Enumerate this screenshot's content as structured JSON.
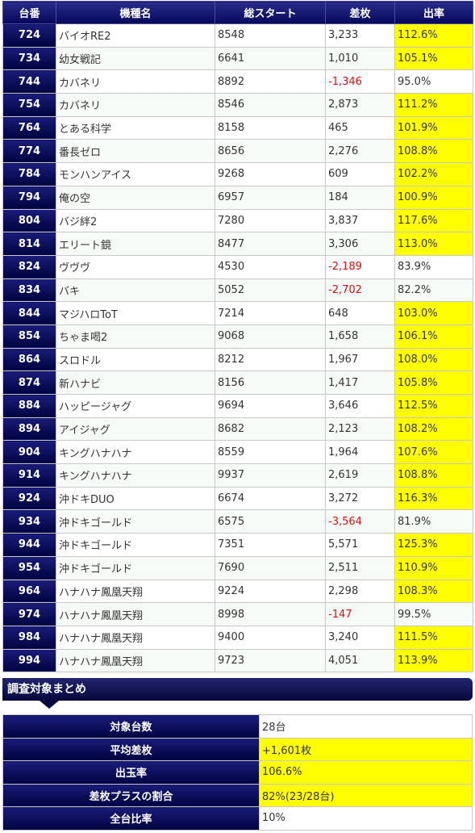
{
  "header": {
    "col_unit": "台番",
    "col_model": "機種名",
    "col_start": "総スタート",
    "col_diff": "差枚",
    "col_rate": "出率"
  },
  "rows": [
    {
      "unit": "724",
      "model": "バイオRE2",
      "start": "8548",
      "diff": "3,233",
      "rate": "112.6%"
    },
    {
      "unit": "734",
      "model": "幼女戦記",
      "start": "6641",
      "diff": "1,010",
      "rate": "105.1%"
    },
    {
      "unit": "744",
      "model": "カバネリ",
      "start": "8892",
      "diff": "-1,346",
      "rate": "95.0%"
    },
    {
      "unit": "754",
      "model": "カバネリ",
      "start": "8546",
      "diff": "2,873",
      "rate": "111.2%"
    },
    {
      "unit": "764",
      "model": "とある科学",
      "start": "8158",
      "diff": "465",
      "rate": "101.9%"
    },
    {
      "unit": "774",
      "model": "番長ゼロ",
      "start": "8656",
      "diff": "2,276",
      "rate": "108.8%"
    },
    {
      "unit": "784",
      "model": "モンハンアイス",
      "start": "9268",
      "diff": "609",
      "rate": "102.2%"
    },
    {
      "unit": "794",
      "model": "俺の空",
      "start": "6957",
      "diff": "184",
      "rate": "100.9%"
    },
    {
      "unit": "804",
      "model": "バジ絆2",
      "start": "7280",
      "diff": "3,837",
      "rate": "117.6%"
    },
    {
      "unit": "814",
      "model": "エリート鏡",
      "start": "8477",
      "diff": "3,306",
      "rate": "113.0%"
    },
    {
      "unit": "824",
      "model": "ヴヴヴ",
      "start": "4530",
      "diff": "-2,189",
      "rate": "83.9%"
    },
    {
      "unit": "834",
      "model": "バキ",
      "start": "5052",
      "diff": "-2,702",
      "rate": "82.2%"
    },
    {
      "unit": "844",
      "model": "マジハロToT",
      "start": "7214",
      "diff": "648",
      "rate": "103.0%"
    },
    {
      "unit": "854",
      "model": "ちゃま喝2",
      "start": "9068",
      "diff": "1,658",
      "rate": "106.1%"
    },
    {
      "unit": "864",
      "model": "スロドル",
      "start": "8212",
      "diff": "1,967",
      "rate": "108.0%"
    },
    {
      "unit": "874",
      "model": "新ハナビ",
      "start": "8156",
      "diff": "1,417",
      "rate": "105.8%"
    },
    {
      "unit": "884",
      "model": "ハッピージャグ",
      "start": "9694",
      "diff": "3,646",
      "rate": "112.5%"
    },
    {
      "unit": "894",
      "model": "アイジャグ",
      "start": "8682",
      "diff": "2,123",
      "rate": "108.2%"
    },
    {
      "unit": "904",
      "model": "キングハナハナ",
      "start": "8559",
      "diff": "1,964",
      "rate": "107.6%"
    },
    {
      "unit": "914",
      "model": "キングハナハナ",
      "start": "9937",
      "diff": "2,619",
      "rate": "108.8%"
    },
    {
      "unit": "924",
      "model": "沖ドキDUO",
      "start": "6674",
      "diff": "3,272",
      "rate": "116.3%"
    },
    {
      "unit": "934",
      "model": "沖ドキゴールド",
      "start": "6575",
      "diff": "-3,564",
      "rate": "81.9%"
    },
    {
      "unit": "944",
      "model": "沖ドキゴールド",
      "start": "7351",
      "diff": "5,571",
      "rate": "125.3%"
    },
    {
      "unit": "954",
      "model": "沖ドキゴールド",
      "start": "7690",
      "diff": "2,511",
      "rate": "110.9%"
    },
    {
      "unit": "964",
      "model": "ハナハナ鳳凰天翔",
      "start": "9224",
      "diff": "2,298",
      "rate": "108.3%"
    },
    {
      "unit": "974",
      "model": "ハナハナ鳳凰天翔",
      "start": "8998",
      "diff": "-147",
      "rate": "99.5%"
    },
    {
      "unit": "984",
      "model": "ハナハナ鳳凰天翔",
      "start": "9400",
      "diff": "3,240",
      "rate": "111.5%"
    },
    {
      "unit": "994",
      "model": "ハナハナ鳳凰天翔",
      "start": "9723",
      "diff": "4,051",
      "rate": "113.9%"
    }
  ],
  "summary_title": "調査対象まとめ",
  "summary": [
    {
      "label": "対象台数",
      "value": "28台",
      "highlight": false
    },
    {
      "label": "平均差枚",
      "value": "+1,601枚",
      "highlight": true
    },
    {
      "label": "出玉率",
      "value": "106.6%",
      "highlight": true
    },
    {
      "label": "差枚プラスの割合",
      "value": "82%(23/28台)",
      "highlight": true
    },
    {
      "label": "全台比率",
      "value": "10%",
      "highlight": false
    }
  ],
  "colors": {
    "header_navy": "#05075a",
    "highlight_yellow": "#ffff00",
    "negative_red": "#e01010"
  }
}
